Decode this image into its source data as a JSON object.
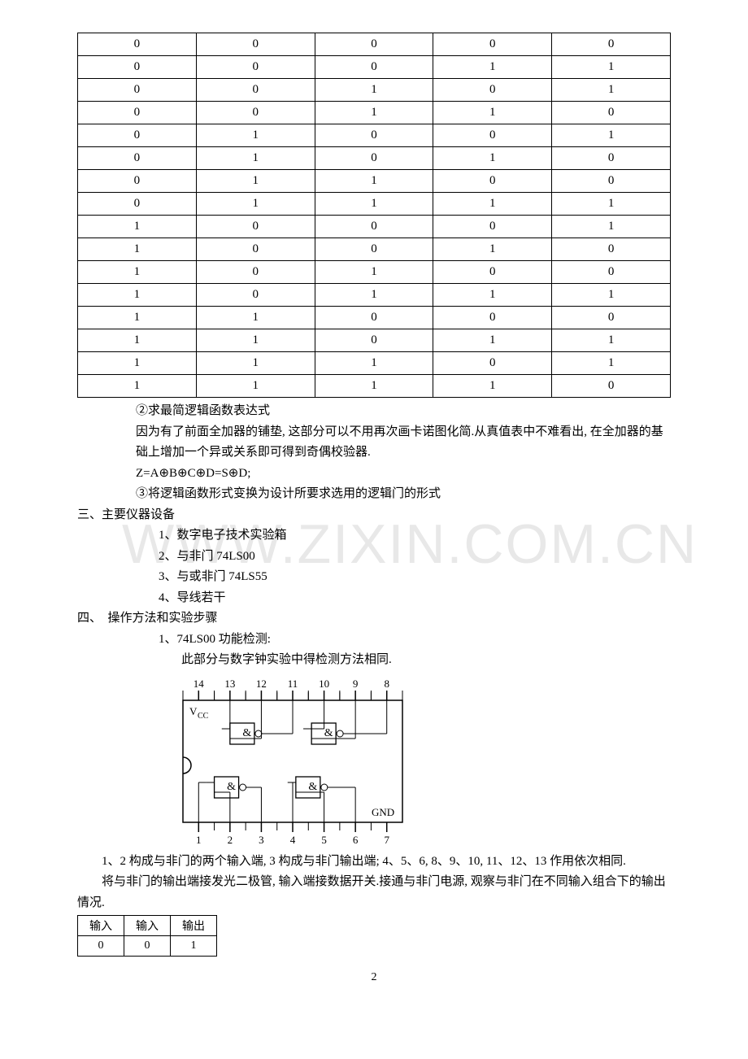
{
  "watermark": "WWW.ZIXIN.COM.CN",
  "truth_table": {
    "columns": 5,
    "rows": [
      [
        "0",
        "0",
        "0",
        "0",
        "0"
      ],
      [
        "0",
        "0",
        "0",
        "1",
        "1"
      ],
      [
        "0",
        "0",
        "1",
        "0",
        "1"
      ],
      [
        "0",
        "0",
        "1",
        "1",
        "0"
      ],
      [
        "0",
        "1",
        "0",
        "0",
        "1"
      ],
      [
        "0",
        "1",
        "0",
        "1",
        "0"
      ],
      [
        "0",
        "1",
        "1",
        "0",
        "0"
      ],
      [
        "0",
        "1",
        "1",
        "1",
        "1"
      ],
      [
        "1",
        "0",
        "0",
        "0",
        "1"
      ],
      [
        "1",
        "0",
        "0",
        "1",
        "0"
      ],
      [
        "1",
        "0",
        "1",
        "0",
        "0"
      ],
      [
        "1",
        "0",
        "1",
        "1",
        "1"
      ],
      [
        "1",
        "1",
        "0",
        "0",
        "0"
      ],
      [
        "1",
        "1",
        "0",
        "1",
        "1"
      ],
      [
        "1",
        "1",
        "1",
        "0",
        "1"
      ],
      [
        "1",
        "1",
        "1",
        "1",
        "0"
      ]
    ],
    "cell_font": "Times New Roman",
    "cell_fontsize": 15,
    "border_color": "#000000"
  },
  "text": {
    "p1": "②求最简逻辑函数表达式",
    "p2": "因为有了前面全加器的铺垫, 这部分可以不用再次画卡诺图化简.从真值表中不难看出, 在全加器的基础上增加一个异或关系即可得到奇偶校验器.",
    "p3": "Z=A⊕B⊕C⊕D=S⊕D;",
    "p4": "③将逻辑函数形式变换为设计所要求选用的逻辑门的形式",
    "h3": "三、主要仪器设备",
    "li1": "1、数字电子技术实验箱",
    "li2": "2、与非门 74LS00",
    "li3": "3、与或非门 74LS55",
    "li4": "4、导线若干",
    "h4": "四、　操作方法和实验步骤",
    "s1": "1、74LS00 功能检测:",
    "s1b": "此部分与数字钟实验中得检测方法相同.",
    "body1": "1、2 构成与非门的两个输入端, 3 构成与非门输出端; 4、5、6, 8、9、10, 11、12、13 作用依次相同.",
    "body2": "将与非门的输出端接发光二极管, 输入端接数据开关.接通与非门电源, 观察与非门在不同输入组合下的输出情况.",
    "pagenum": "2"
  },
  "chip": {
    "top_pins": [
      "14",
      "13",
      "12",
      "11",
      "10",
      "9",
      "8"
    ],
    "bot_pins": [
      "1",
      "2",
      "3",
      "4",
      "5",
      "6",
      "7"
    ],
    "vcc": "V",
    "vcc_sub": "CC",
    "gnd": "GND",
    "gate_symbol": "&",
    "stroke": "#000000",
    "fill": "#ffffff",
    "font_family": "Times New Roman",
    "pin_fontsize": 13,
    "label_fontsize": 13
  },
  "small_table": {
    "header": [
      "输入",
      "输入",
      "输出"
    ],
    "rows": [
      [
        "0",
        "0",
        "1"
      ]
    ]
  }
}
